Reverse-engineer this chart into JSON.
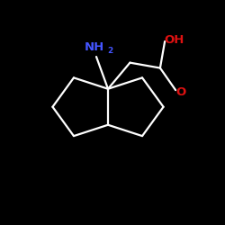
{
  "background_color": "#000000",
  "bond_color": "#ffffff",
  "nh2_color": "#4455ff",
  "oh_color": "#dd1111",
  "o_color": "#dd1111",
  "bond_lw": 1.6,
  "figsize": [
    2.5,
    2.5
  ],
  "dpi": 100,
  "xlim": [
    0,
    10
  ],
  "ylim": [
    0,
    10
  ],
  "nh2_fontsize": 9.5,
  "sub2_fontsize": 6.5,
  "oh_fontsize": 9.5,
  "o_fontsize": 9.5
}
